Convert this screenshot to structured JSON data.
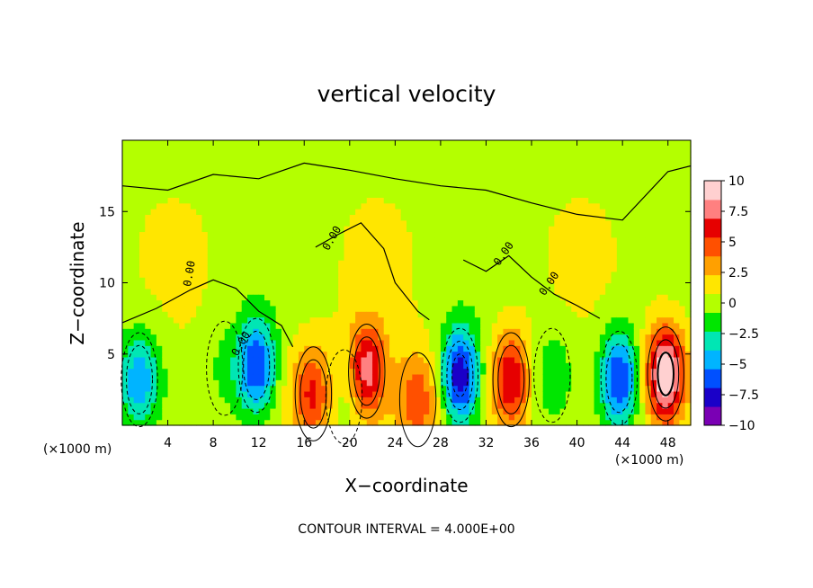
{
  "chart_data": {
    "type": "heatmap",
    "title": "vertical velocity",
    "xlabel": "X−coordinate",
    "ylabel": "Z−coordinate",
    "x_unit_label": "(×1000 m)",
    "z_unit_label": "(×1000 m)",
    "xlim": [
      0,
      50
    ],
    "ylim": [
      0,
      20
    ],
    "x_ticks": [
      4,
      8,
      12,
      16,
      20,
      24,
      28,
      32,
      36,
      40,
      44,
      48
    ],
    "x_tick_labels": [
      "4",
      "8",
      "12",
      "16",
      "20",
      "24",
      "28",
      "32",
      "36",
      "40",
      "44",
      "48"
    ],
    "y_ticks": [
      5,
      10,
      15
    ],
    "y_tick_labels": [
      "5",
      "10",
      "15"
    ],
    "colorbar": {
      "range": [
        -10,
        10
      ],
      "ticks": [
        10,
        7.5,
        5,
        2.5,
        0,
        -2.5,
        -5,
        -7.5,
        -10
      ],
      "tick_labels": [
        "10",
        "7.5",
        "5",
        "2.5",
        "0",
        "−2.5",
        "−5",
        "−7.5",
        "−10"
      ],
      "colors": [
        "#7a00b4",
        "#1a00c8",
        "#0050ff",
        "#00b4ff",
        "#00e6b4",
        "#00e600",
        "#b4ff00",
        "#ffe600",
        "#ffa000",
        "#ff5000",
        "#e60000",
        "#ff8080",
        "#ffd0d0"
      ]
    },
    "background_value": 0.5,
    "features": [
      {
        "x": 1.5,
        "z": 3.2,
        "w": -5.5
      },
      {
        "x": 11.8,
        "z": 4.2,
        "w": -7.0
      },
      {
        "x": 16.8,
        "z": 2.2,
        "w": 5.5
      },
      {
        "x": 21.5,
        "z": 3.8,
        "w": 7.5
      },
      {
        "x": 26.0,
        "z": 1.8,
        "w": 4.5
      },
      {
        "x": 29.7,
        "z": 3.5,
        "w": -8.5
      },
      {
        "x": 34.2,
        "z": 3.2,
        "w": 6.5
      },
      {
        "x": 43.7,
        "z": 3.3,
        "w": -7.5
      },
      {
        "x": 47.8,
        "z": 3.6,
        "w": 10.0
      },
      {
        "x": 37.8,
        "z": 3.5,
        "w": -2.5
      },
      {
        "x": 19.5,
        "z": 2.0,
        "w": -2.0
      },
      {
        "x": 9.0,
        "z": 4.0,
        "w": -1.5
      }
    ],
    "contour_labels": [
      "0.00",
      "0.00",
      "0.00",
      "0.00",
      "0.00"
    ],
    "contour_interval_text": "CONTOUR INTERVAL = 4.000E+00"
  }
}
